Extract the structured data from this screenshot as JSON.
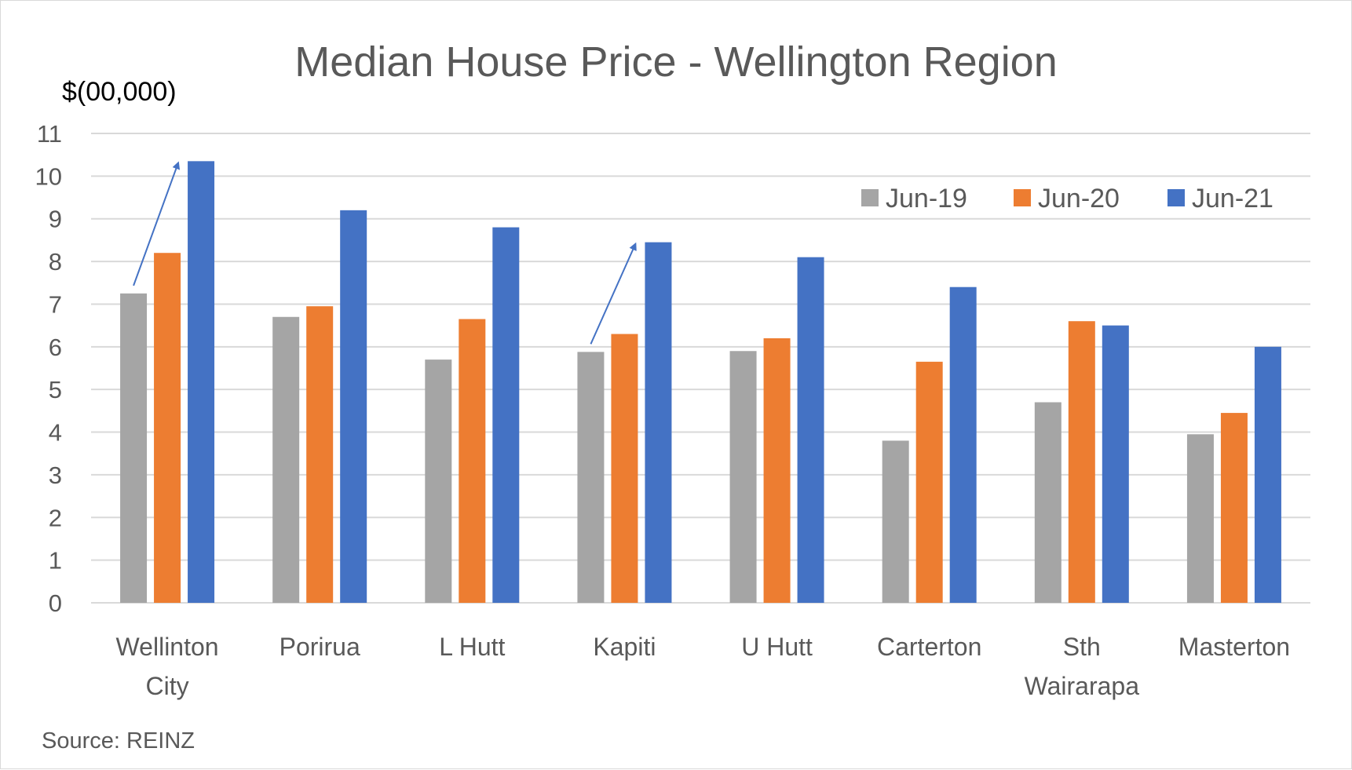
{
  "chart_data": {
    "type": "bar",
    "title": "Median House Price - Wellington Region",
    "ylabel": "$(00,000)",
    "xlabel": "",
    "ylim": [
      0,
      11
    ],
    "yticks": [
      "0",
      "1",
      "2",
      "3",
      "4",
      "5",
      "6",
      "7",
      "8",
      "9",
      "10",
      "11"
    ],
    "grid": true,
    "legend_position": "top-right",
    "categories": [
      [
        "Wellinton",
        "City"
      ],
      [
        "Porirua"
      ],
      [
        "L Hutt"
      ],
      [
        "Kapiti"
      ],
      [
        "U Hutt"
      ],
      [
        "Carterton"
      ],
      [
        "Sth",
        "Wairarapa"
      ],
      [
        "Masterton"
      ]
    ],
    "series": [
      {
        "name": "Jun-19",
        "color": "#a5a5a5",
        "values": [
          7.25,
          6.7,
          5.7,
          5.88,
          5.9,
          3.8,
          4.7,
          3.95
        ]
      },
      {
        "name": "Jun-20",
        "color": "#ed7d31",
        "values": [
          8.2,
          6.95,
          6.65,
          6.3,
          6.2,
          5.65,
          6.6,
          4.45
        ]
      },
      {
        "name": "Jun-21",
        "color": "#4472c4",
        "values": [
          10.35,
          9.2,
          8.8,
          8.45,
          8.1,
          7.4,
          6.5,
          6.0
        ]
      }
    ],
    "annotations": [
      {
        "type": "arrow",
        "category_index": 0,
        "from_series": 0,
        "to_series": 2
      },
      {
        "type": "arrow",
        "category_index": 3,
        "from_series": 0,
        "to_series": 2
      }
    ],
    "source": "Source: REINZ"
  }
}
